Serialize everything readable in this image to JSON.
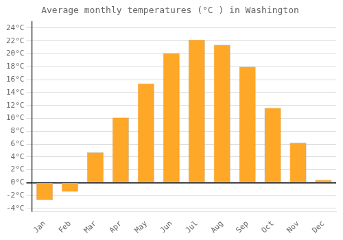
{
  "chart_data": {
    "type": "bar",
    "title": "Average monthly temperatures (°C ) in Washington",
    "categories": [
      "Jan",
      "Feb",
      "Mar",
      "Apr",
      "May",
      "Jun",
      "Jul",
      "Aug",
      "Sep",
      "Oct",
      "Nov",
      "Dec"
    ],
    "values": [
      -2.7,
      -1.4,
      4.7,
      10.1,
      15.4,
      20.1,
      22.2,
      21.4,
      18.0,
      11.6,
      6.2,
      0.4
    ],
    "color": "#FFA726",
    "ylim": [
      -4.5,
      25
    ],
    "yticks": [
      {
        "value": -4,
        "label": "-4°C"
      },
      {
        "value": -2,
        "label": "-2°C"
      },
      {
        "value": 0,
        "label": "0°C"
      },
      {
        "value": 2,
        "label": "2°C"
      },
      {
        "value": 4,
        "label": "4°C"
      },
      {
        "value": 6,
        "label": "6°C"
      },
      {
        "value": 8,
        "label": "8°C"
      },
      {
        "value": 10,
        "label": "10°C"
      },
      {
        "value": 12,
        "label": "12°C"
      },
      {
        "value": 14,
        "label": "14°C"
      },
      {
        "value": 16,
        "label": "16°C"
      },
      {
        "value": 18,
        "label": "18°C"
      },
      {
        "value": 20,
        "label": "20°C"
      },
      {
        "value": 22,
        "label": "22°C"
      },
      {
        "value": 24,
        "label": "24°C"
      }
    ],
    "grid": true
  }
}
